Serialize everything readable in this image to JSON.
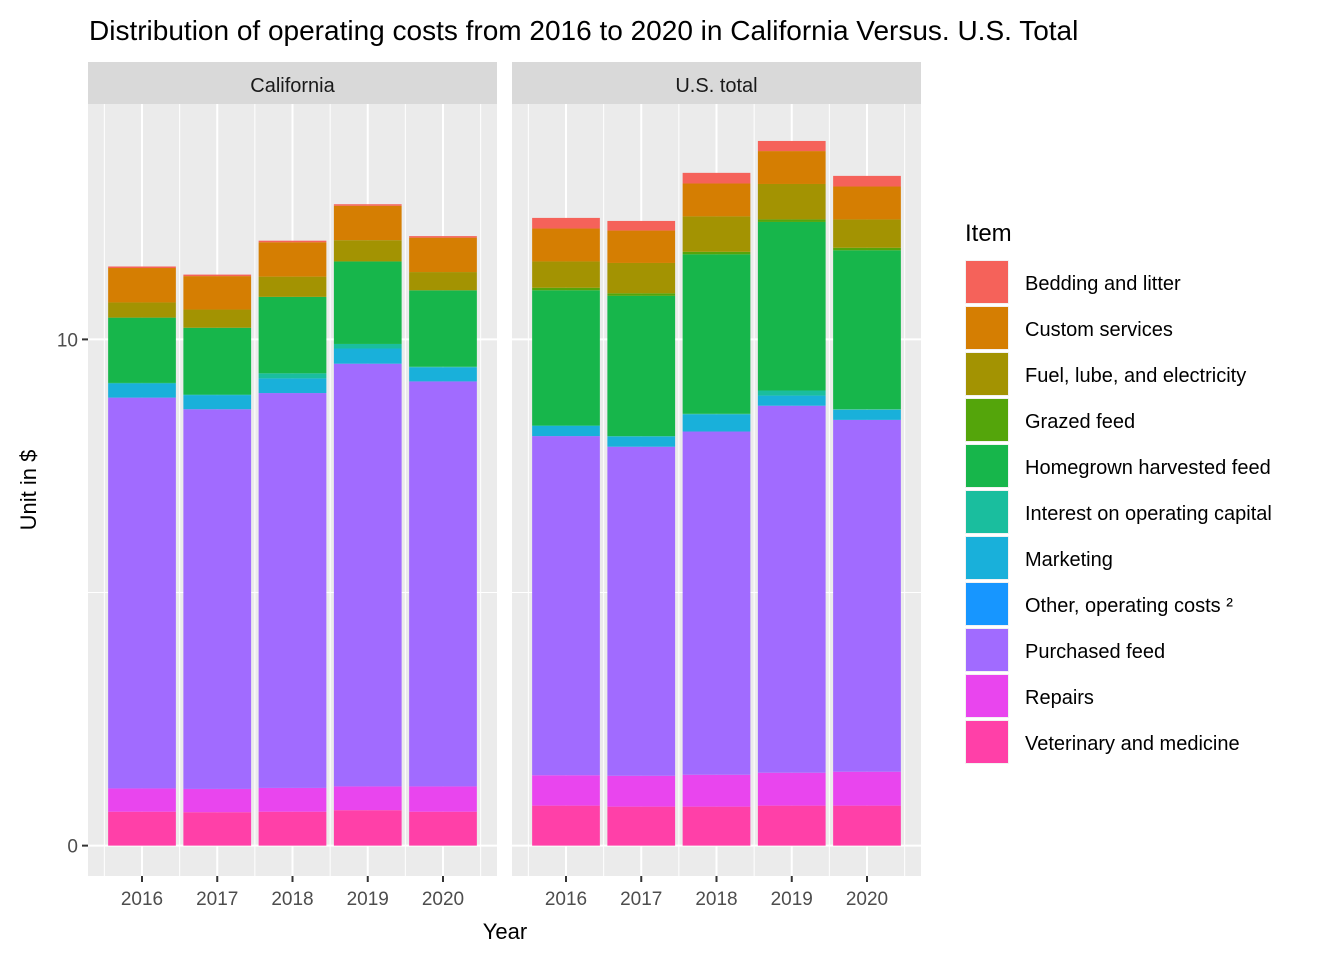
{
  "chart_data": {
    "type": "bar",
    "stacked": true,
    "title": "Distribution of operating costs from 2016 to 2020 in California Versus. U.S. Total",
    "xlabel": "Year",
    "ylabel": "Unit in $",
    "ylim": [
      -0.6,
      14.65
    ],
    "yticks": [
      0,
      10
    ],
    "grid": true,
    "legend_position": "right",
    "legend_title": "Item",
    "panels": [
      "California",
      "U.S. total"
    ],
    "categories": [
      "2016",
      "2017",
      "2018",
      "2019",
      "2020"
    ],
    "series": [
      {
        "name": "Veterinary and medicine",
        "color": "#FF40A8",
        "values": {
          "California": [
            0.67,
            0.66,
            0.67,
            0.7,
            0.67
          ],
          "U.S. total": [
            0.79,
            0.77,
            0.77,
            0.79,
            0.79
          ]
        }
      },
      {
        "name": "Repairs",
        "color": "#E945EE",
        "values": {
          "California": [
            0.46,
            0.46,
            0.47,
            0.47,
            0.5
          ],
          "U.S. total": [
            0.6,
            0.61,
            0.63,
            0.65,
            0.67
          ]
        }
      },
      {
        "name": "Purchased feed",
        "color": "#A16BFF",
        "values": {
          "California": [
            7.72,
            7.5,
            7.8,
            8.35,
            8.0
          ],
          "U.S. total": [
            6.7,
            6.5,
            6.78,
            7.25,
            6.95
          ]
        }
      },
      {
        "name": "Other, operating costs ²",
        "color": "#1796FF",
        "values": {
          "California": [
            0.0,
            0.0,
            0.0,
            0.0,
            0.0
          ],
          "U.S. total": [
            0.0,
            0.0,
            0.0,
            0.0,
            0.0
          ]
        }
      },
      {
        "name": "Marketing",
        "color": "#19B0DA",
        "values": {
          "California": [
            0.28,
            0.28,
            0.29,
            0.3,
            0.28
          ],
          "U.S. total": [
            0.2,
            0.2,
            0.34,
            0.2,
            0.2
          ]
        }
      },
      {
        "name": "Interest on operating capital",
        "color": "#1ABE9E",
        "values": {
          "California": [
            0.01,
            0.01,
            0.1,
            0.09,
            0.01
          ],
          "U.S. total": [
            0.01,
            0.01,
            0.01,
            0.1,
            0.01
          ]
        }
      },
      {
        "name": "Homegrown harvested feed",
        "color": "#17B64B",
        "values": {
          "California": [
            1.29,
            1.32,
            1.51,
            1.63,
            1.51
          ],
          "U.S. total": [
            2.67,
            2.77,
            3.15,
            3.33,
            3.14
          ]
        }
      },
      {
        "name": "Grazed feed",
        "color": "#54A50B",
        "values": {
          "California": [
            0.0,
            0.0,
            0.0,
            0.0,
            0.0
          ],
          "U.S. total": [
            0.05,
            0.05,
            0.05,
            0.05,
            0.05
          ]
        }
      },
      {
        "name": "Fuel, lube, and electricity",
        "color": "#A39302",
        "values": {
          "California": [
            0.3,
            0.36,
            0.4,
            0.42,
            0.36
          ],
          "U.S. total": [
            0.52,
            0.6,
            0.7,
            0.7,
            0.56
          ]
        }
      },
      {
        "name": "Custom services",
        "color": "#D57E02",
        "values": {
          "California": [
            0.68,
            0.66,
            0.68,
            0.68,
            0.68
          ],
          "U.S. total": [
            0.65,
            0.64,
            0.65,
            0.65,
            0.65
          ]
        }
      },
      {
        "name": "Bedding and litter",
        "color": "#F5625A",
        "values": {
          "California": [
            0.03,
            0.03,
            0.03,
            0.03,
            0.03
          ],
          "U.S. total": [
            0.21,
            0.19,
            0.21,
            0.2,
            0.21
          ]
        }
      }
    ],
    "legend_order": [
      "Bedding and litter",
      "Custom services",
      "Fuel, lube, and electricity",
      "Grazed feed",
      "Homegrown harvested feed",
      "Interest on operating capital",
      "Marketing",
      "Other, operating costs ²",
      "Purchased feed",
      "Repairs",
      "Veterinary and medicine"
    ]
  }
}
